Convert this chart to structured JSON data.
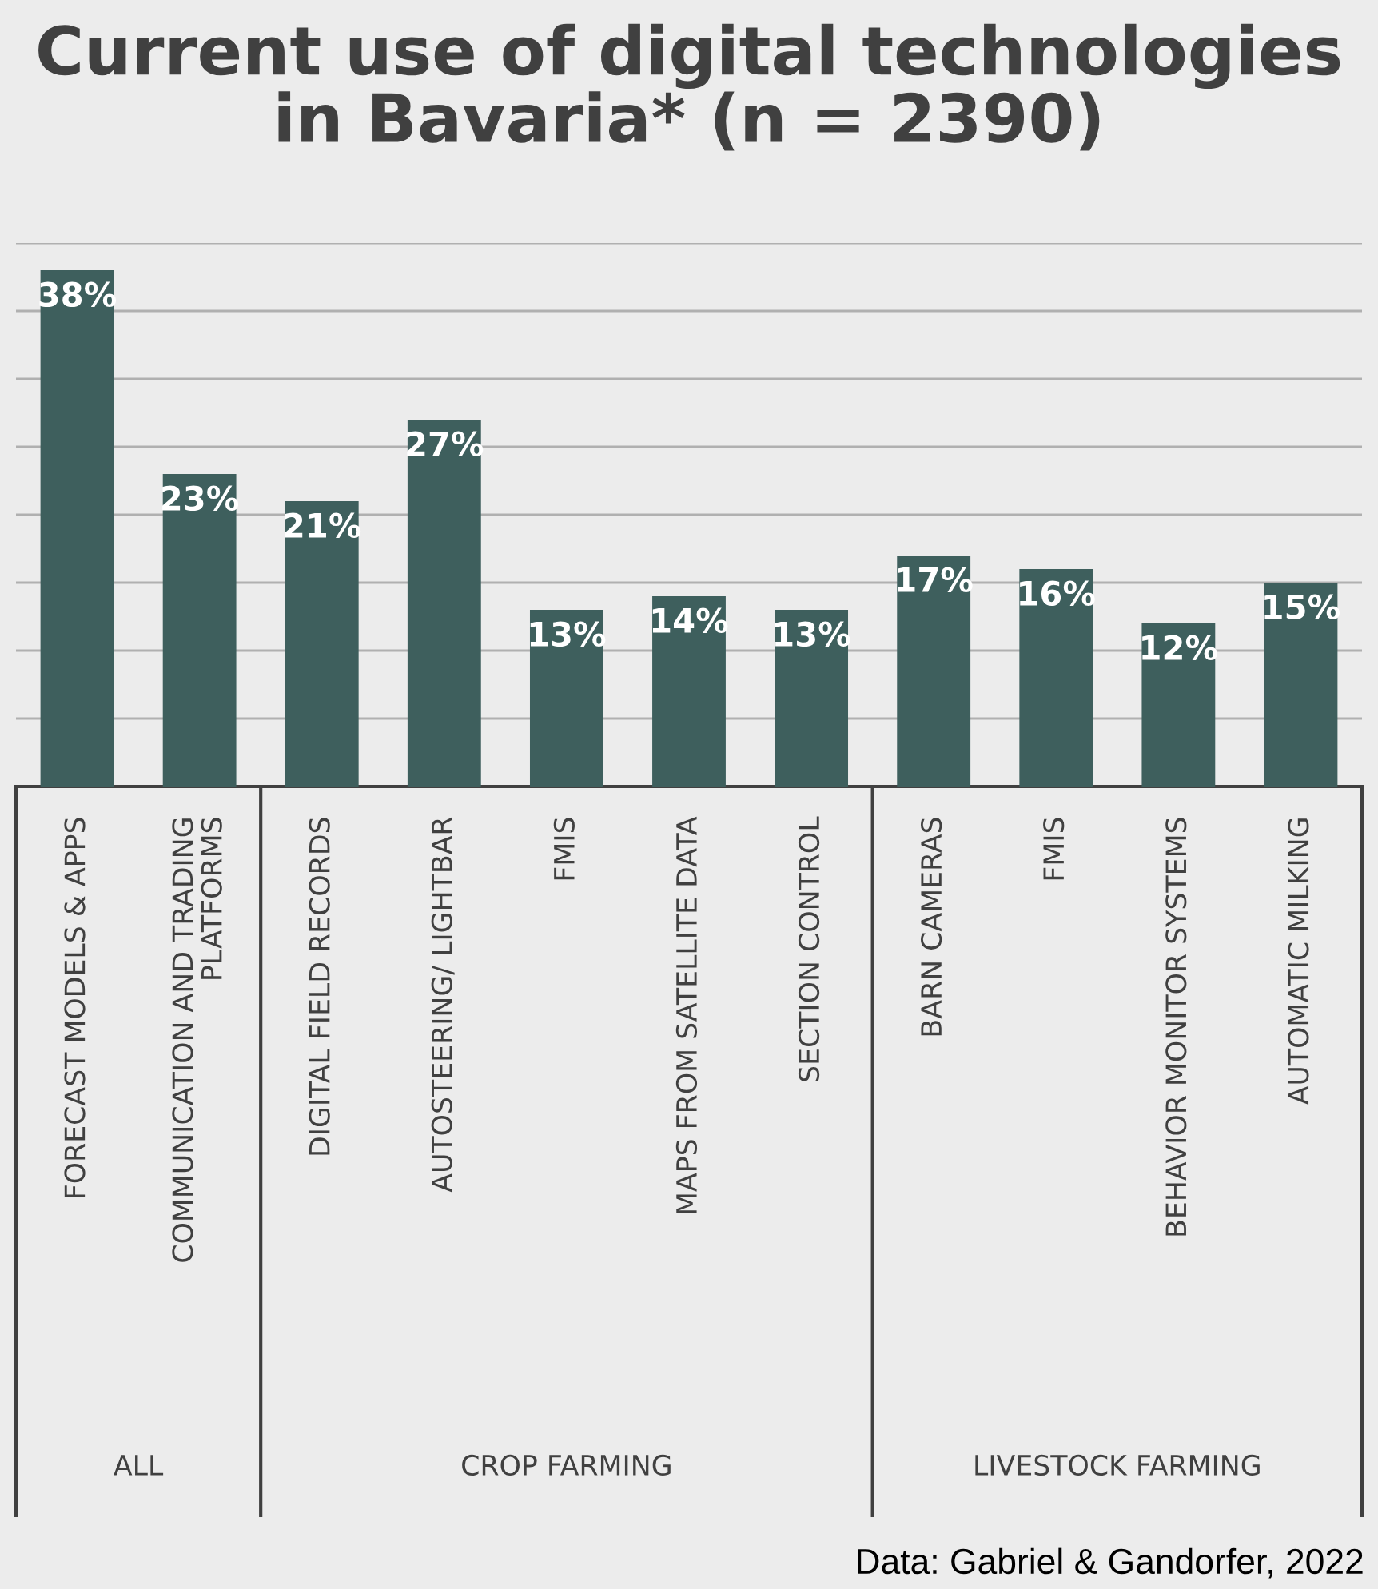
{
  "chart_data": {
    "type": "bar",
    "title": "Current use of digital technologies in Bavaria* (n = 2390)",
    "categories": [
      "FORECAST MODELS & APPS",
      "COMMUNICATION AND TRADING PLATFORMS",
      "DIGITAL FIELD RECORDS",
      "AUTOSTEERING/ LIGHTBAR",
      "FMIS",
      "MAPS FROM SATELLITE DATA",
      "SECTION CONTROL",
      "BARN CAMERAS",
      "FMIS",
      "BEHAVIOR MONITOR SYSTEMS",
      "AUTOMATIC MILKING"
    ],
    "values": [
      38,
      23,
      21,
      27,
      13,
      14,
      13,
      17,
      16,
      12,
      15
    ],
    "value_labels": [
      "38%",
      "23%",
      "21%",
      "27%",
      "13%",
      "14%",
      "13%",
      "17%",
      "16%",
      "12%",
      "15%"
    ],
    "color": "#3e5f5d",
    "ylim": [
      0,
      40
    ],
    "yticks": [
      {
        "value": 0,
        "label": null
      },
      {
        "value": 5,
        "label": null
      },
      {
        "value": 10,
        "label": null
      },
      {
        "value": 15,
        "label": null
      },
      {
        "value": 20,
        "label": null
      },
      {
        "value": 25,
        "label": null
      },
      {
        "value": 30,
        "label": null
      },
      {
        "value": 35,
        "label": null
      },
      {
        "value": 40,
        "label": null
      }
    ],
    "grid": "y",
    "tick_labels": "x",
    "annotations": [
      "ALL",
      "CROP FARMING",
      "LIVESTOCK FARMING",
      "Data: Gabriel & Gandorfer, 2022"
    ]
  }
}
